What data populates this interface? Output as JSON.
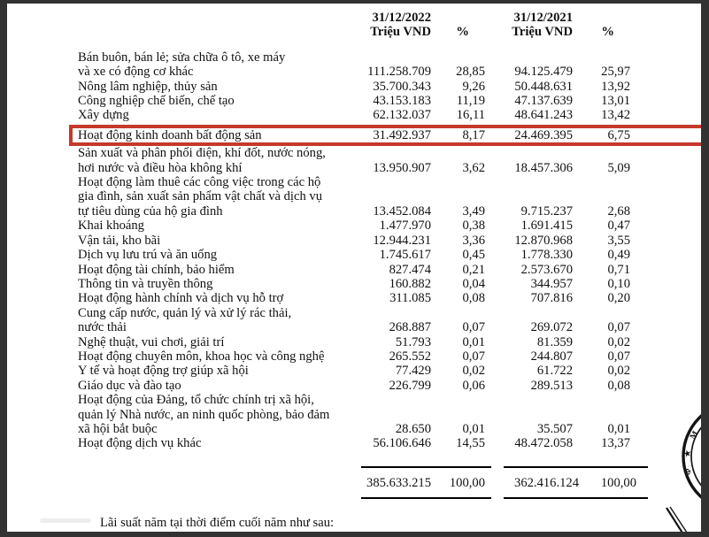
{
  "colors": {
    "highlight_box": "#c5392b",
    "frame": "#323232",
    "page_background": "#ffffff",
    "text": "#111111"
  },
  "table": {
    "header": {
      "period_2022": "31/12/2022",
      "unit_2022": "Triệu VND",
      "pct_2022": "%",
      "period_2021": "31/12/2021",
      "unit_2021": "Triệu VND",
      "pct_2021": "%"
    },
    "rows": [
      {
        "label_lines": [
          "Bán buôn, bán lẻ; sửa chữa ô tô, xe máy",
          "và xe có động cơ khác"
        ],
        "v2022": "111.258.709",
        "p2022": "28,85",
        "v2021": "94.125.479",
        "p2021": "25,97"
      },
      {
        "label_lines": [
          "Nông lâm nghiệp, thủy sản"
        ],
        "v2022": "35.700.343",
        "p2022": "9,26",
        "v2021": "50.448.631",
        "p2021": "13,92"
      },
      {
        "label_lines": [
          "Công nghiệp chế biến, chế tạo"
        ],
        "v2022": "43.153.183",
        "p2022": "11,19",
        "v2021": "47.137.639",
        "p2021": "13,01"
      },
      {
        "label_lines": [
          "Xây dựng"
        ],
        "v2022": "62.132.037",
        "p2022": "16,11",
        "v2021": "48.641.243",
        "p2021": "13,42"
      },
      {
        "label_lines": [
          "Hoạt động kinh doanh bất động sản"
        ],
        "v2022": "31.492.937",
        "p2022": "8,17",
        "v2021": "24.469.395",
        "p2021": "6,75",
        "highlighted": true
      },
      {
        "label_lines": [
          "Sản xuất và phân phối điện, khí đốt, nước nóng,",
          "hơi nước và điều hòa không khí"
        ],
        "v2022": "13.950.907",
        "p2022": "3,62",
        "v2021": "18.457.306",
        "p2021": "5,09"
      },
      {
        "label_lines": [
          "Hoạt động làm thuê các công việc trong các hộ",
          "gia đình, sản xuất sản phẩm vật chất và dịch vụ",
          "tự tiêu dùng của hộ gia đình"
        ],
        "v2022": "13.452.084",
        "p2022": "3,49",
        "v2021": "9.715.237",
        "p2021": "2,68"
      },
      {
        "label_lines": [
          "Khai khoáng"
        ],
        "v2022": "1.477.970",
        "p2022": "0,38",
        "v2021": "1.691.415",
        "p2021": "0,47"
      },
      {
        "label_lines": [
          "Vận tải, kho bãi"
        ],
        "v2022": "12.944.231",
        "p2022": "3,36",
        "v2021": "12.870.968",
        "p2021": "3,55"
      },
      {
        "label_lines": [
          "Dịch vụ lưu trú và ăn uống"
        ],
        "v2022": "1.745.617",
        "p2022": "0,45",
        "v2021": "1.778.330",
        "p2021": "0,49"
      },
      {
        "label_lines": [
          "Hoạt động tài chính, bảo hiểm"
        ],
        "v2022": "827.474",
        "p2022": "0,21",
        "v2021": "2.573.670",
        "p2021": "0,71"
      },
      {
        "label_lines": [
          "Thông tin và truyền thông"
        ],
        "v2022": "160.882",
        "p2022": "0,04",
        "v2021": "344.957",
        "p2021": "0,10"
      },
      {
        "label_lines": [
          "Hoạt động hành chính và dịch vụ hỗ trợ"
        ],
        "v2022": "311.085",
        "p2022": "0,08",
        "v2021": "707.816",
        "p2021": "0,20"
      },
      {
        "label_lines": [
          "Cung cấp nước, quản lý và xử lý rác thải,",
          "nước thải"
        ],
        "v2022": "268.887",
        "p2022": "0,07",
        "v2021": "269.072",
        "p2021": "0,07"
      },
      {
        "label_lines": [
          "Nghệ thuật, vui chơi, giải trí"
        ],
        "v2022": "51.793",
        "p2022": "0,01",
        "v2021": "81.359",
        "p2021": "0,02"
      },
      {
        "label_lines": [
          "Hoạt động chuyên môn, khoa học và công nghệ"
        ],
        "v2022": "265.552",
        "p2022": "0,07",
        "v2021": "244.807",
        "p2021": "0,07"
      },
      {
        "label_lines": [
          "Y tế và hoạt động trợ giúp xã hội"
        ],
        "v2022": "77.429",
        "p2022": "0,02",
        "v2021": "61.722",
        "p2021": "0,02"
      },
      {
        "label_lines": [
          "Giáo dục và đào tạo"
        ],
        "v2022": "226.799",
        "p2022": "0,06",
        "v2021": "289.513",
        "p2021": "0,08"
      },
      {
        "label_lines": [
          "Hoạt động của Đảng, tổ chức chính trị xã hội,",
          "quản lý Nhà nước, an ninh quốc phòng, bảo đảm",
          "xã hội bắt buộc"
        ],
        "v2022": "28.650",
        "p2022": "0,01",
        "v2021": "35.507",
        "p2021": "0,01"
      },
      {
        "label_lines": [
          "Hoạt động dịch vụ khác"
        ],
        "v2022": "56.106.646",
        "p2022": "14,55",
        "v2021": "48.472.058",
        "p2021": "13,37"
      }
    ],
    "totals": {
      "v2022": "385.633.215",
      "p2022": "100,00",
      "v2021": "362.416.124",
      "p2021": "100,00"
    }
  },
  "footer": {
    "text": "Lãi suất năm tại thời điểm cuối năm như sau:"
  },
  "stamp": {
    "glyphs": [
      "M",
      "★",
      "Φ"
    ]
  }
}
